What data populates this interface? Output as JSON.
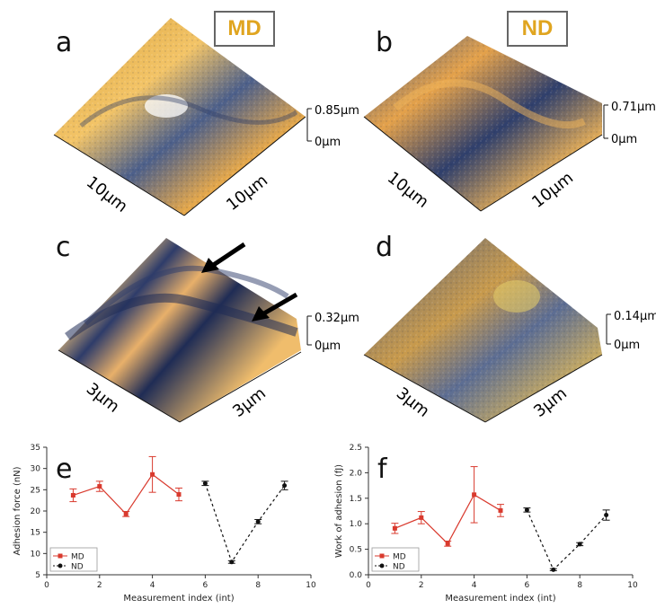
{
  "tags": {
    "md": "MD",
    "nd": "ND"
  },
  "panels": {
    "a": {
      "letter": "a",
      "x_label": "10µm",
      "y_label": "10µm",
      "z_max": "0.85µm",
      "z_min": "0µm"
    },
    "b": {
      "letter": "b",
      "x_label": "10µm",
      "y_label": "10µm",
      "z_max": "0.71µm",
      "z_min": "0µm"
    },
    "c": {
      "letter": "c",
      "x_label": "3µm",
      "y_label": "3µm",
      "z_max": "0.32µm",
      "z_min": "0µm"
    },
    "d": {
      "letter": "d",
      "x_label": "3µm",
      "y_label": "3µm",
      "z_max": "0.14µm",
      "z_min": "0µm"
    }
  },
  "colors": {
    "md": "#d93a2e",
    "nd": "#111111",
    "surface_high": "#f2b04a",
    "surface_low": "#2c3c66"
  },
  "chart_data": [
    {
      "panel": "e",
      "type": "line",
      "xlabel": "Measurement index (int)",
      "ylabel": "Adhesion force (nN)",
      "xlim": [
        0,
        10
      ],
      "ylim": [
        5,
        35
      ],
      "xticks": [
        0,
        2,
        4,
        6,
        8,
        10
      ],
      "yticks": [
        5,
        10,
        15,
        20,
        25,
        30,
        35
      ],
      "legend": "bottom-left",
      "series": [
        {
          "name": "MD",
          "color": "#d93a2e",
          "dashed": false,
          "marker": "square",
          "x": [
            1,
            2,
            3,
            4,
            5
          ],
          "y": [
            23.7,
            25.8,
            19.3,
            28.6,
            23.9
          ],
          "err": [
            1.5,
            1.2,
            0.6,
            4.2,
            1.5
          ]
        },
        {
          "name": "ND",
          "color": "#111111",
          "dashed": true,
          "marker": "circle",
          "x": [
            6,
            7,
            8,
            9
          ],
          "y": [
            26.5,
            8.0,
            17.5,
            26.0
          ],
          "err": [
            0.5,
            0.3,
            0.5,
            1.0
          ]
        }
      ]
    },
    {
      "panel": "f",
      "type": "line",
      "xlabel": "Measurement index (int)",
      "ylabel": "Work of adhesion (fJ)",
      "xlim": [
        0,
        10
      ],
      "ylim": [
        0.0,
        2.5
      ],
      "xticks": [
        0,
        2,
        4,
        6,
        8,
        10
      ],
      "yticks": [
        0.0,
        0.5,
        1.0,
        1.5,
        2.0,
        2.5
      ],
      "legend": "bottom-left",
      "series": [
        {
          "name": "MD",
          "color": "#d93a2e",
          "dashed": false,
          "marker": "square",
          "x": [
            1,
            2,
            3,
            4,
            5
          ],
          "y": [
            0.91,
            1.12,
            0.61,
            1.57,
            1.26
          ],
          "err": [
            0.1,
            0.12,
            0.05,
            0.55,
            0.12
          ]
        },
        {
          "name": "ND",
          "color": "#111111",
          "dashed": true,
          "marker": "circle",
          "x": [
            6,
            7,
            8,
            9
          ],
          "y": [
            1.27,
            0.1,
            0.6,
            1.17
          ],
          "err": [
            0.04,
            0.02,
            0.03,
            0.1
          ]
        }
      ]
    }
  ]
}
